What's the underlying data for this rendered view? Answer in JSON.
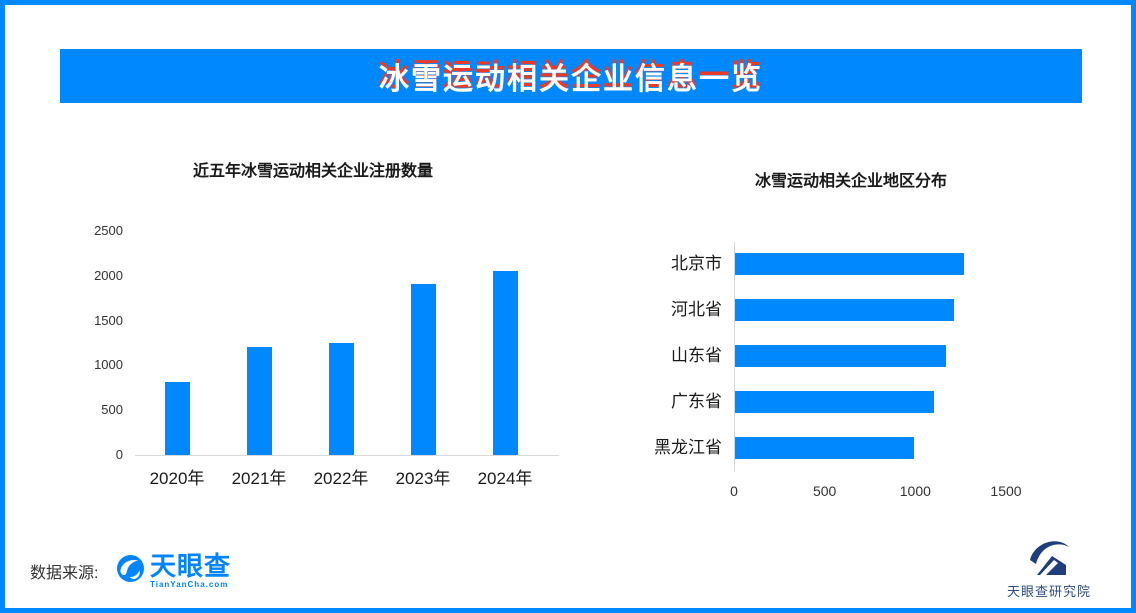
{
  "banner": {
    "title": "冰雪运动相关企业信息一览",
    "bg_color": "#0089fe",
    "text_color": "#ffffff",
    "text_shadow_color": "#ea3b28"
  },
  "chart_data": [
    {
      "type": "bar",
      "orientation": "vertical",
      "title": "近五年冰雪运动相关企业注册数量",
      "categories": [
        "2020年",
        "2021年",
        "2022年",
        "2023年",
        "2024年"
      ],
      "values": [
        815,
        1210,
        1250,
        1910,
        2055
      ],
      "ylabel": "",
      "xlabel": "",
      "ylim": [
        0,
        2500
      ],
      "yticks": [
        0,
        500,
        1000,
        1500,
        2000,
        2500
      ],
      "grid": false,
      "bar_color": "#0089fe"
    },
    {
      "type": "bar",
      "orientation": "horizontal",
      "title": "冰雪运动相关企业地区分布",
      "categories": [
        "北京市",
        "河北省",
        "山东省",
        "广东省",
        "黑龙江省"
      ],
      "values": [
        1265,
        1205,
        1165,
        1095,
        985
      ],
      "ylabel": "",
      "xlabel": "",
      "xlim": [
        0,
        1500
      ],
      "xticks": [
        0,
        500,
        1000,
        1500
      ],
      "grid": false,
      "bar_color": "#0089fe"
    }
  ],
  "footer": {
    "source_label": "数据来源:",
    "tianyancha_logo": {
      "name": "天眼查",
      "subtext": "TianYanCha.com",
      "color": "#0084ff",
      "icon": "blue-circle-white-swirl"
    },
    "research_logo": {
      "text": "天眼查研究院",
      "color": "#2e4d80",
      "icon": "navy-swoosh-house"
    }
  },
  "colors": {
    "accent_blue": "#0089fe",
    "title_red": "#ea3b28",
    "axis_gray": "#d9d9d9",
    "label_dark": "#1a1a1a",
    "navy_logo": "#1e3f7c"
  }
}
